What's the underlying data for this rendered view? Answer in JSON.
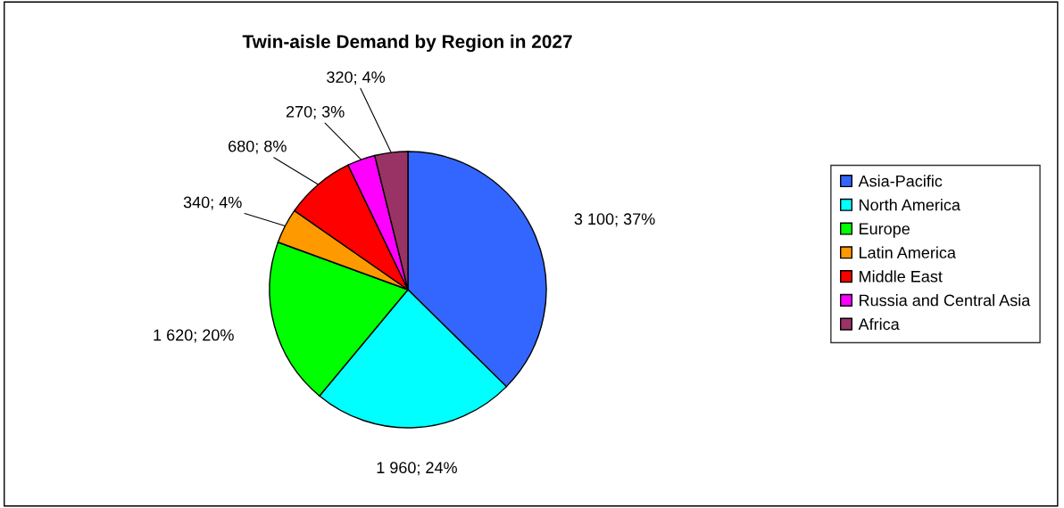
{
  "chart_data": {
    "type": "pie",
    "title": "Twin-aisle Demand by Region in 2027",
    "categories": [
      "Asia-Pacific",
      "North America",
      "Europe",
      "Latin America",
      "Middle East",
      "Russia and Central Asia",
      "Africa"
    ],
    "values": [
      3100,
      1960,
      1620,
      340,
      680,
      270,
      320
    ],
    "colors": [
      "#3366ff",
      "#00ffff",
      "#00ff00",
      "#ff9900",
      "#ff0000",
      "#ff00ff",
      "#993366"
    ],
    "value_labels": [
      "3 100; 37%",
      "1 960; 24%",
      "1 620; 20%",
      "340; 4%",
      "680; 8%",
      "270; 3%",
      "320; 4%"
    ],
    "legend": "right"
  }
}
